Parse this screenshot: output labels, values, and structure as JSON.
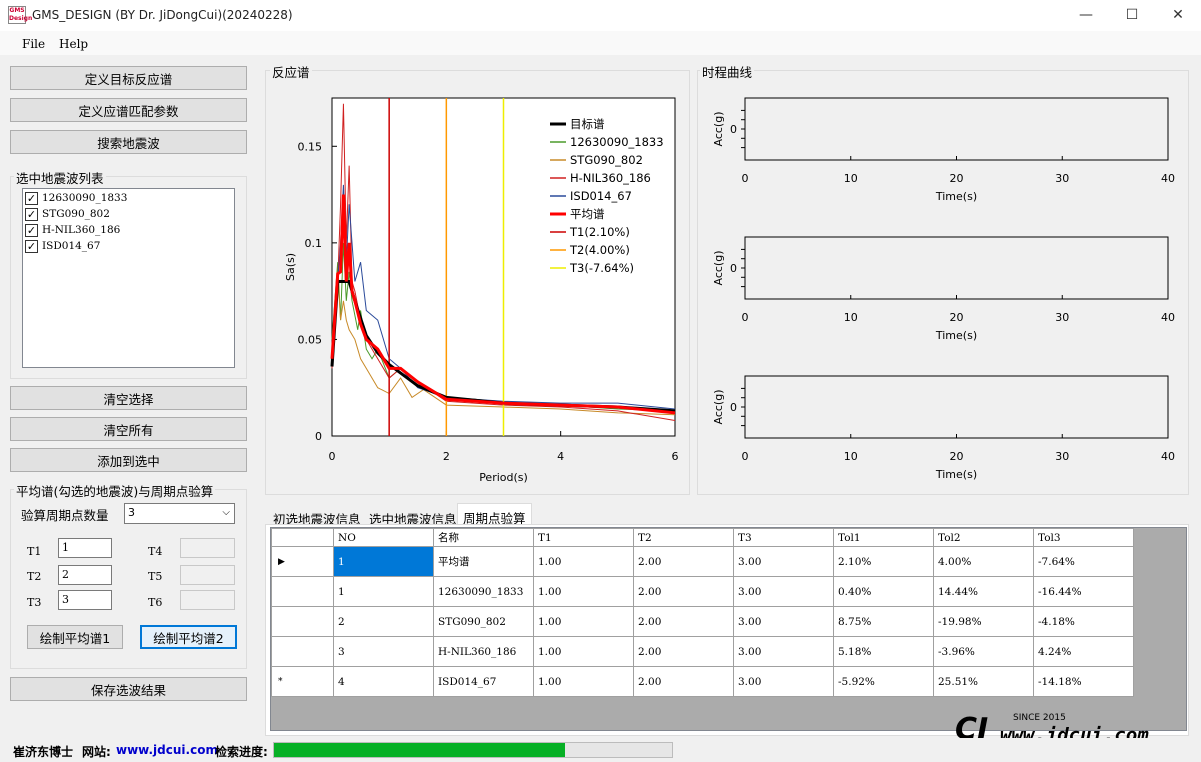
{
  "window": {
    "title": "GMS_DESIGN (BY Dr. JiDongCui)(20240228)",
    "icon_text": "GMS Design",
    "min": "—",
    "max": "☐",
    "close": "✕"
  },
  "menu": [
    "File",
    "Help"
  ],
  "left": {
    "buttons_top": [
      "定义目标反应谱",
      "定义应谱匹配参数",
      "搜索地震波"
    ],
    "list_group_title": "选中地震波列表",
    "list_items": [
      "12630090_1833",
      "STG090_802",
      "H-NIL360_186",
      "ISD014_67"
    ],
    "buttons_mid": [
      "清空选择",
      "清空所有",
      "添加到选中"
    ],
    "avg_group_title": "平均谱(勾选的地震波)与周期点验算",
    "period_count_label": "验算周期点数量",
    "period_count_value": "3",
    "t_labels": [
      "T1",
      "T2",
      "T3",
      "T4",
      "T5",
      "T6"
    ],
    "t_values": [
      "1",
      "2",
      "3",
      "",
      "",
      ""
    ],
    "draw1": "绘制平均谱1",
    "draw2": "绘制平均谱2",
    "save": "保存选波结果"
  },
  "spectrum_panel": {
    "title": "反应谱"
  },
  "history_panel": {
    "title": "时程曲线"
  },
  "tabs": [
    "初选地震波信息",
    "选中地震波信息",
    "周期点验算"
  ],
  "active_tab": 2,
  "table": {
    "headers": [
      "NO",
      "名称",
      "T1",
      "T2",
      "T3",
      "Tol1",
      "Tol2",
      "Tol3"
    ],
    "rows": [
      {
        "marker": "▶",
        "cells": [
          "1",
          "平均谱",
          "1.00",
          "2.00",
          "3.00",
          "2.10%",
          "4.00%",
          "-7.64%"
        ]
      },
      {
        "marker": "",
        "cells": [
          "1",
          "12630090_1833",
          "1.00",
          "2.00",
          "3.00",
          "0.40%",
          "14.44%",
          "-16.44%"
        ]
      },
      {
        "marker": "",
        "cells": [
          "2",
          "STG090_802",
          "1.00",
          "2.00",
          "3.00",
          "8.75%",
          "-19.98%",
          "-4.18%"
        ]
      },
      {
        "marker": "",
        "cells": [
          "3",
          "H-NIL360_186",
          "1.00",
          "2.00",
          "3.00",
          "5.18%",
          "-3.96%",
          "4.24%"
        ]
      },
      {
        "marker": "*",
        "cells": [
          "4",
          "ISD014_67",
          "1.00",
          "2.00",
          "3.00",
          "-5.92%",
          "25.51%",
          "-14.18%"
        ]
      }
    ]
  },
  "status": {
    "author": "崔济东博士",
    "site_label": "网站:",
    "site": "www.jdcui.com",
    "progress_label": "检索进度:",
    "progress": 0.73
  },
  "watermark": {
    "since": "SINCE 2015",
    "url": "www.jdcui.com",
    "logo": "CJ"
  },
  "chart_data": [
    {
      "type": "line",
      "ylabel": "Sa(s)",
      "xlabel": "Period(s)",
      "xlim": [
        0,
        6
      ],
      "ylim": [
        0,
        0.175
      ],
      "xticks": [
        "0",
        "2",
        "4",
        "6"
      ],
      "yticks": [
        "0",
        "0.05",
        "0.1",
        "0.15"
      ],
      "legend_position": "top-right",
      "series": [
        {
          "name": "目标谱",
          "color": "#000000",
          "x": [
            0,
            0.1,
            0.3,
            0.4,
            0.6,
            0.8,
            1,
            1.5,
            2,
            3,
            4,
            5,
            6
          ],
          "y": [
            0.036,
            0.08,
            0.08,
            0.07,
            0.052,
            0.043,
            0.037,
            0.026,
            0.02,
            0.017,
            0.016,
            0.015,
            0.013
          ]
        },
        {
          "name": "12630090_1833",
          "color": "#4a9a2a",
          "x": [
            0,
            0.1,
            0.15,
            0.2,
            0.25,
            0.3,
            0.35,
            0.45,
            0.5,
            0.6,
            0.7,
            0.8,
            1,
            1.2,
            1.4,
            1.6,
            2,
            2.5,
            3,
            4,
            5,
            6
          ],
          "y": [
            0.05,
            0.09,
            0.06,
            0.1,
            0.07,
            0.085,
            0.07,
            0.055,
            0.065,
            0.045,
            0.04,
            0.045,
            0.03,
            0.035,
            0.03,
            0.025,
            0.02,
            0.019,
            0.017,
            0.016,
            0.014,
            0.013
          ]
        },
        {
          "name": "STG090_802",
          "color": "#c88a28",
          "x": [
            0,
            0.1,
            0.15,
            0.2,
            0.25,
            0.3,
            0.4,
            0.5,
            0.6,
            0.8,
            1,
            1.2,
            1.4,
            1.6,
            2,
            3,
            4,
            5,
            6
          ],
          "y": [
            0.04,
            0.085,
            0.06,
            0.07,
            0.06,
            0.055,
            0.05,
            0.04,
            0.035,
            0.025,
            0.022,
            0.03,
            0.02,
            0.024,
            0.016,
            0.015,
            0.014,
            0.012,
            0.011
          ]
        },
        {
          "name": "H-NIL360_186",
          "color": "#d02020",
          "x": [
            0,
            0.1,
            0.15,
            0.2,
            0.25,
            0.3,
            0.35,
            0.4,
            0.5,
            0.6,
            0.8,
            1,
            1.2,
            1.5,
            2,
            3,
            4,
            5,
            6
          ],
          "y": [
            0.035,
            0.08,
            0.12,
            0.172,
            0.1,
            0.14,
            0.08,
            0.075,
            0.06,
            0.05,
            0.04,
            0.03,
            0.035,
            0.028,
            0.018,
            0.016,
            0.015,
            0.013,
            0.008
          ]
        },
        {
          "name": "ISD014_67",
          "color": "#2a4a9a",
          "x": [
            0,
            0.1,
            0.15,
            0.2,
            0.25,
            0.3,
            0.4,
            0.5,
            0.6,
            0.8,
            1,
            1.2,
            1.5,
            2,
            3,
            4,
            5,
            6
          ],
          "y": [
            0.04,
            0.08,
            0.1,
            0.13,
            0.09,
            0.12,
            0.08,
            0.09,
            0.065,
            0.06,
            0.04,
            0.035,
            0.025,
            0.02,
            0.018,
            0.017,
            0.017,
            0.014
          ]
        },
        {
          "name": "平均谱",
          "color": "#ff0000",
          "x": [
            0,
            0.1,
            0.15,
            0.2,
            0.25,
            0.3,
            0.35,
            0.4,
            0.5,
            0.6,
            0.8,
            1,
            1.2,
            1.5,
            2,
            3,
            4,
            5,
            6
          ],
          "y": [
            0.04,
            0.084,
            0.085,
            0.125,
            0.08,
            0.1,
            0.075,
            0.07,
            0.058,
            0.05,
            0.045,
            0.035,
            0.035,
            0.028,
            0.019,
            0.017,
            0.016,
            0.015,
            0.012
          ]
        },
        {
          "name": "T1(2.10%)",
          "color": "#cc0000",
          "x": [
            1,
            1
          ],
          "y": [
            0,
            0.175
          ]
        },
        {
          "name": "T2(4.00%)",
          "color": "#ff9900",
          "x": [
            2,
            2
          ],
          "y": [
            0,
            0.175
          ]
        },
        {
          "name": "T3(-7.64%)",
          "color": "#eeee00",
          "x": [
            3,
            3
          ],
          "y": [
            0,
            0.175
          ]
        }
      ]
    },
    {
      "type": "line",
      "ylabel": "Acc(g)",
      "xlabel": "Time(s)",
      "xlim": [
        0,
        40
      ],
      "xticks": [
        "0",
        "10",
        "20",
        "30",
        "40"
      ],
      "yticks": [
        "0"
      ],
      "series": []
    },
    {
      "type": "line",
      "ylabel": "Acc(g)",
      "xlabel": "Time(s)",
      "xlim": [
        0,
        40
      ],
      "xticks": [
        "0",
        "10",
        "20",
        "30",
        "40"
      ],
      "yticks": [
        "0"
      ],
      "series": []
    },
    {
      "type": "line",
      "ylabel": "Acc(g)",
      "xlabel": "Time(s)",
      "xlim": [
        0,
        40
      ],
      "xticks": [
        "0",
        "10",
        "20",
        "30",
        "40"
      ],
      "yticks": [
        "0"
      ],
      "series": []
    }
  ]
}
